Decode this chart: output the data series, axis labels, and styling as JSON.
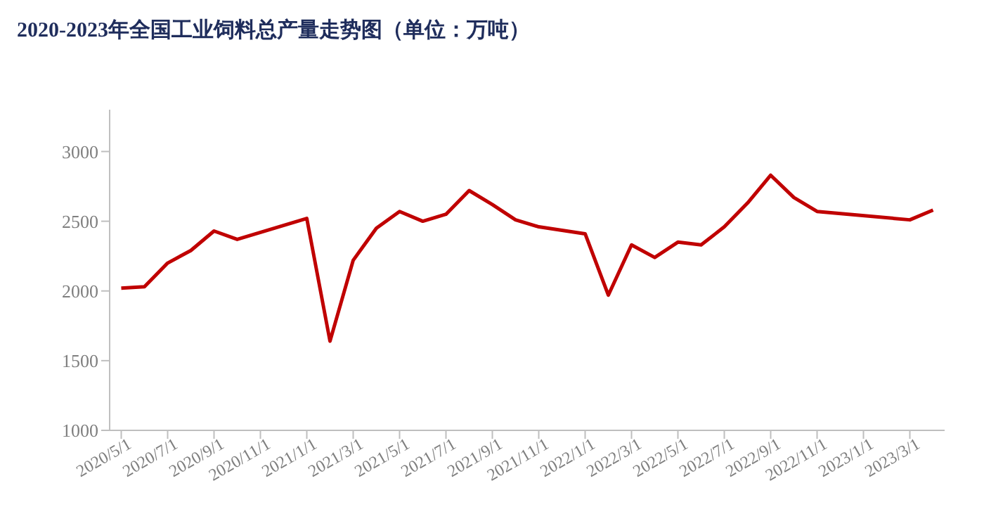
{
  "chart_data": {
    "type": "line",
    "title": "2020-2023年全国工业饲料总产量走势图（单位：万吨）",
    "categories": [
      "2020/5/1",
      null,
      "2020/7/1",
      null,
      "2020/9/1",
      null,
      "2020/11/1",
      null,
      "2021/1/1",
      null,
      "2021/3/1",
      null,
      "2021/5/1",
      null,
      "2021/7/1",
      null,
      "2021/9/1",
      null,
      "2021/11/1",
      null,
      "2022/1/1",
      null,
      "2022/3/1",
      null,
      "2022/5/1",
      null,
      "2022/7/1",
      null,
      "2022/9/1",
      null,
      "2022/11/1",
      null,
      "2023/1/1",
      null,
      "2023/3/1",
      null
    ],
    "series": [
      {
        "color": "#c00000",
        "values": [
          2020,
          2030,
          2200,
          2290,
          2430,
          2370,
          null,
          null,
          2520,
          1640,
          2220,
          2450,
          2570,
          2500,
          2550,
          2720,
          2620,
          2510,
          2460,
          null,
          2410,
          1970,
          2330,
          2240,
          2350,
          2330,
          2460,
          2630,
          2830,
          2670,
          2570,
          null,
          null,
          null,
          2510,
          2580
        ]
      }
    ],
    "ylim": [
      1000,
      3300
    ],
    "yticks": [
      1000,
      1500,
      2000,
      2500,
      3000
    ],
    "marker": "none",
    "line_style": "solid"
  }
}
